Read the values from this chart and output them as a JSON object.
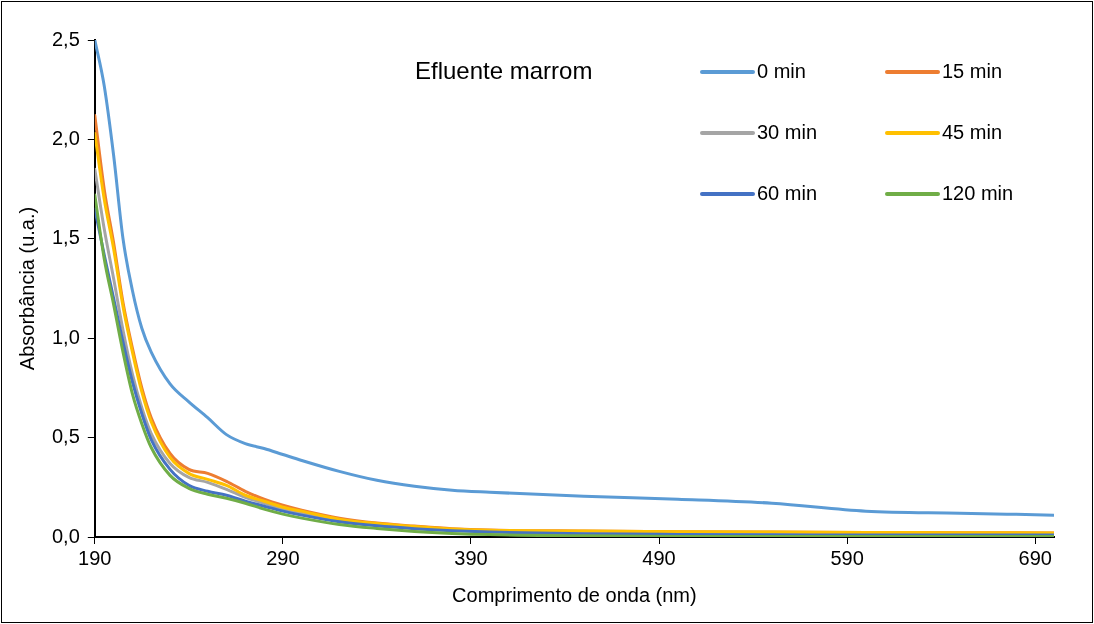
{
  "chart_data": {
    "type": "line",
    "title": "Efluente marrom",
    "xlabel": "Comprimento de onda (nm)",
    "ylabel": "Absorbância (u.a.)",
    "x": [
      190,
      195,
      200,
      205,
      210,
      215,
      220,
      230,
      240,
      250,
      260,
      270,
      280,
      290,
      300,
      320,
      340,
      360,
      380,
      400,
      450,
      500,
      550,
      600,
      650,
      700
    ],
    "series": [
      {
        "name": "0 min",
        "color": "#5b9bd5",
        "values": [
          2.5,
          2.27,
          1.92,
          1.5,
          1.24,
          1.05,
          0.93,
          0.77,
          0.68,
          0.6,
          0.515,
          0.47,
          0.445,
          0.415,
          0.385,
          0.33,
          0.285,
          0.255,
          0.235,
          0.225,
          0.205,
          0.19,
          0.17,
          0.13,
          0.12,
          0.11
        ]
      },
      {
        "name": "15 min",
        "color": "#ed7d31",
        "values": [
          2.12,
          1.75,
          1.48,
          1.18,
          0.95,
          0.75,
          0.6,
          0.42,
          0.34,
          0.32,
          0.28,
          0.23,
          0.19,
          0.16,
          0.135,
          0.095,
          0.07,
          0.055,
          0.042,
          0.035,
          0.03,
          0.027,
          0.025,
          0.023,
          0.022,
          0.02
        ]
      },
      {
        "name": "30 min",
        "color": "#a5a5a5",
        "values": [
          1.85,
          1.55,
          1.3,
          1.04,
          0.82,
          0.65,
          0.52,
          0.37,
          0.3,
          0.275,
          0.24,
          0.2,
          0.17,
          0.14,
          0.12,
          0.082,
          0.06,
          0.045,
          0.035,
          0.028,
          null,
          null,
          null,
          null,
          null,
          null
        ]
      },
      {
        "name": "45 min",
        "color": "#ffc000",
        "values": [
          2.03,
          1.7,
          1.45,
          1.16,
          0.93,
          0.73,
          0.58,
          0.4,
          0.32,
          0.29,
          0.26,
          0.21,
          0.18,
          0.15,
          0.13,
          0.09,
          0.068,
          0.053,
          0.04,
          0.034,
          0.03,
          0.027,
          0.025,
          0.023,
          0.022,
          0.02
        ]
      },
      {
        "name": "60 min",
        "color": "#4472c4",
        "values": [
          1.65,
          1.42,
          1.2,
          0.98,
          0.78,
          0.62,
          0.49,
          0.34,
          0.26,
          0.23,
          0.21,
          0.18,
          0.155,
          0.13,
          0.11,
          0.077,
          0.056,
          0.042,
          0.032,
          0.025,
          0.016,
          0.013,
          0.011,
          0.01,
          0.01,
          0.01
        ]
      },
      {
        "name": "120 min",
        "color": "#70ad47",
        "values": [
          1.72,
          1.4,
          1.17,
          0.93,
          0.72,
          0.57,
          0.45,
          0.31,
          0.245,
          0.215,
          0.195,
          0.17,
          0.14,
          0.115,
          0.095,
          0.063,
          0.043,
          0.028,
          0.018,
          0.012,
          0.006,
          0.003,
          0.002,
          0.002,
          0.002,
          0.002
        ]
      }
    ],
    "xlim": [
      190,
      700
    ],
    "xticks": [
      190,
      290,
      390,
      490,
      590,
      690
    ],
    "ylim": [
      0,
      2.5
    ],
    "yticks": [
      {
        "value": 0,
        "label": "0,0"
      },
      {
        "value": 0.5,
        "label": "0,5"
      },
      {
        "value": 1,
        "label": "1,0"
      },
      {
        "value": 1.5,
        "label": "1,5"
      },
      {
        "value": 2,
        "label": "2,0"
      },
      {
        "value": 2.5,
        "label": "2,5"
      }
    ],
    "grid": false,
    "legend": "top right",
    "marker": "none",
    "line_style": "solid"
  }
}
